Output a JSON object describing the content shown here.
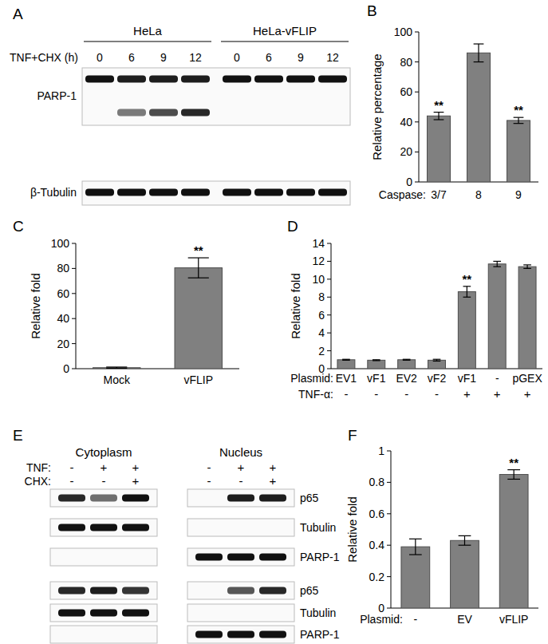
{
  "blots": [
    {
      "panel": "A",
      "lane_label": "TNF+CHX (h)",
      "groups": [
        {
          "label": "HeLa",
          "lanes": [
            "0",
            "6",
            "9",
            "12"
          ]
        },
        {
          "label": "HeLa-vFLIP",
          "lanes": [
            "0",
            "6",
            "9",
            "12"
          ]
        }
      ],
      "rows": [
        {
          "label": "PARP-1",
          "bands": [
            [
              1,
              0.95,
              0.95,
              0.95,
              1,
              1,
              1,
              1
            ],
            [
              0,
              0.55,
              0.75,
              0.9,
              0,
              0,
              0,
              0
            ]
          ]
        },
        {
          "label": "β-Tubulin",
          "bands": [
            [
              1,
              1,
              1,
              1,
              1,
              1,
              1,
              1
            ]
          ]
        }
      ]
    },
    {
      "panel": "E",
      "groups": [
        {
          "label": "Cytoplasm"
        },
        {
          "label": "Nucleus"
        }
      ],
      "conditions": [
        {
          "label": "TNF:",
          "values": [
            "-",
            "+",
            "+"
          ]
        },
        {
          "label": "CHX:",
          "values": [
            "-",
            "-",
            "+"
          ]
        }
      ],
      "rows": [
        {
          "label": "p65",
          "bands": [
            [
              0.9,
              0.6,
              1,
              0,
              0.95,
              0.95
            ]
          ]
        },
        {
          "label": "Tubulin",
          "bands": [
            [
              1,
              1,
              1,
              0,
              0,
              0
            ]
          ]
        },
        {
          "label": "PARP-1",
          "bands": [
            [
              0,
              0,
              0,
              1,
              1,
              1
            ]
          ]
        },
        {
          "label": "p65",
          "bands": [
            [
              0.9,
              0.95,
              0.85,
              0,
              0.7,
              0.9
            ]
          ]
        },
        {
          "label": "Tubulin",
          "bands": [
            [
              1,
              1,
              1,
              0,
              0,
              0
            ]
          ]
        },
        {
          "label": "PARP-1",
          "bands": [
            [
              0,
              0,
              0,
              1,
              1,
              1
            ]
          ]
        }
      ]
    }
  ],
  "chart_data": [
    {
      "panel": "B",
      "type": "bar",
      "y_label": "Relative percentage",
      "category_label": "Caspase:",
      "categories": [
        "3/7",
        "8",
        "9"
      ],
      "values": [
        44,
        86,
        41
      ],
      "errors": [
        2.5,
        6,
        2
      ],
      "annotations": [
        "**",
        null,
        "**"
      ],
      "color": "#808080",
      "ylim": [
        0,
        100
      ],
      "yticks": [
        0,
        20,
        40,
        60,
        80,
        100
      ]
    },
    {
      "panel": "C",
      "type": "bar",
      "y_label": "Relative fold",
      "categories": [
        "Mock",
        "vFLIP"
      ],
      "values": [
        0.8,
        80.5
      ],
      "errors": [
        0.5,
        8
      ],
      "annotations": [
        null,
        "**"
      ],
      "color": "#808080",
      "ylim": [
        0,
        100
      ],
      "yticks": [
        0,
        20,
        40,
        60,
        80,
        100
      ]
    },
    {
      "panel": "D",
      "type": "bar",
      "y_label": "Relative fold",
      "category_label": "Plasmid:",
      "categories": [
        "EV1",
        "vF1",
        "EV2",
        "vF2",
        "vF1",
        "-",
        "pGEX"
      ],
      "category2_label": "TNF-α:",
      "categories2": [
        "-",
        "-",
        "-",
        "-",
        "+",
        "+",
        "+"
      ],
      "values": [
        1,
        0.95,
        1,
        0.95,
        8.6,
        11.7,
        11.4
      ],
      "errors": [
        0.05,
        0.05,
        0.05,
        0.1,
        0.6,
        0.3,
        0.2
      ],
      "annotations": [
        null,
        null,
        null,
        null,
        "**",
        null,
        null
      ],
      "color": "#808080",
      "ylim": [
        0,
        14
      ],
      "yticks": [
        0,
        2,
        4,
        6,
        8,
        10,
        12,
        14
      ]
    },
    {
      "panel": "F",
      "type": "bar",
      "y_label": "Relative fold",
      "category_label": "Plasmid:",
      "categories": [
        "-",
        "EV",
        "vFLIP"
      ],
      "values": [
        0.39,
        0.43,
        0.85
      ],
      "errors": [
        0.05,
        0.03,
        0.03
      ],
      "annotations": [
        null,
        null,
        "**"
      ],
      "color": "#808080",
      "ylim": [
        0,
        1
      ],
      "yticks": [
        0,
        0.2,
        0.4,
        0.6,
        0.8,
        1
      ]
    }
  ]
}
